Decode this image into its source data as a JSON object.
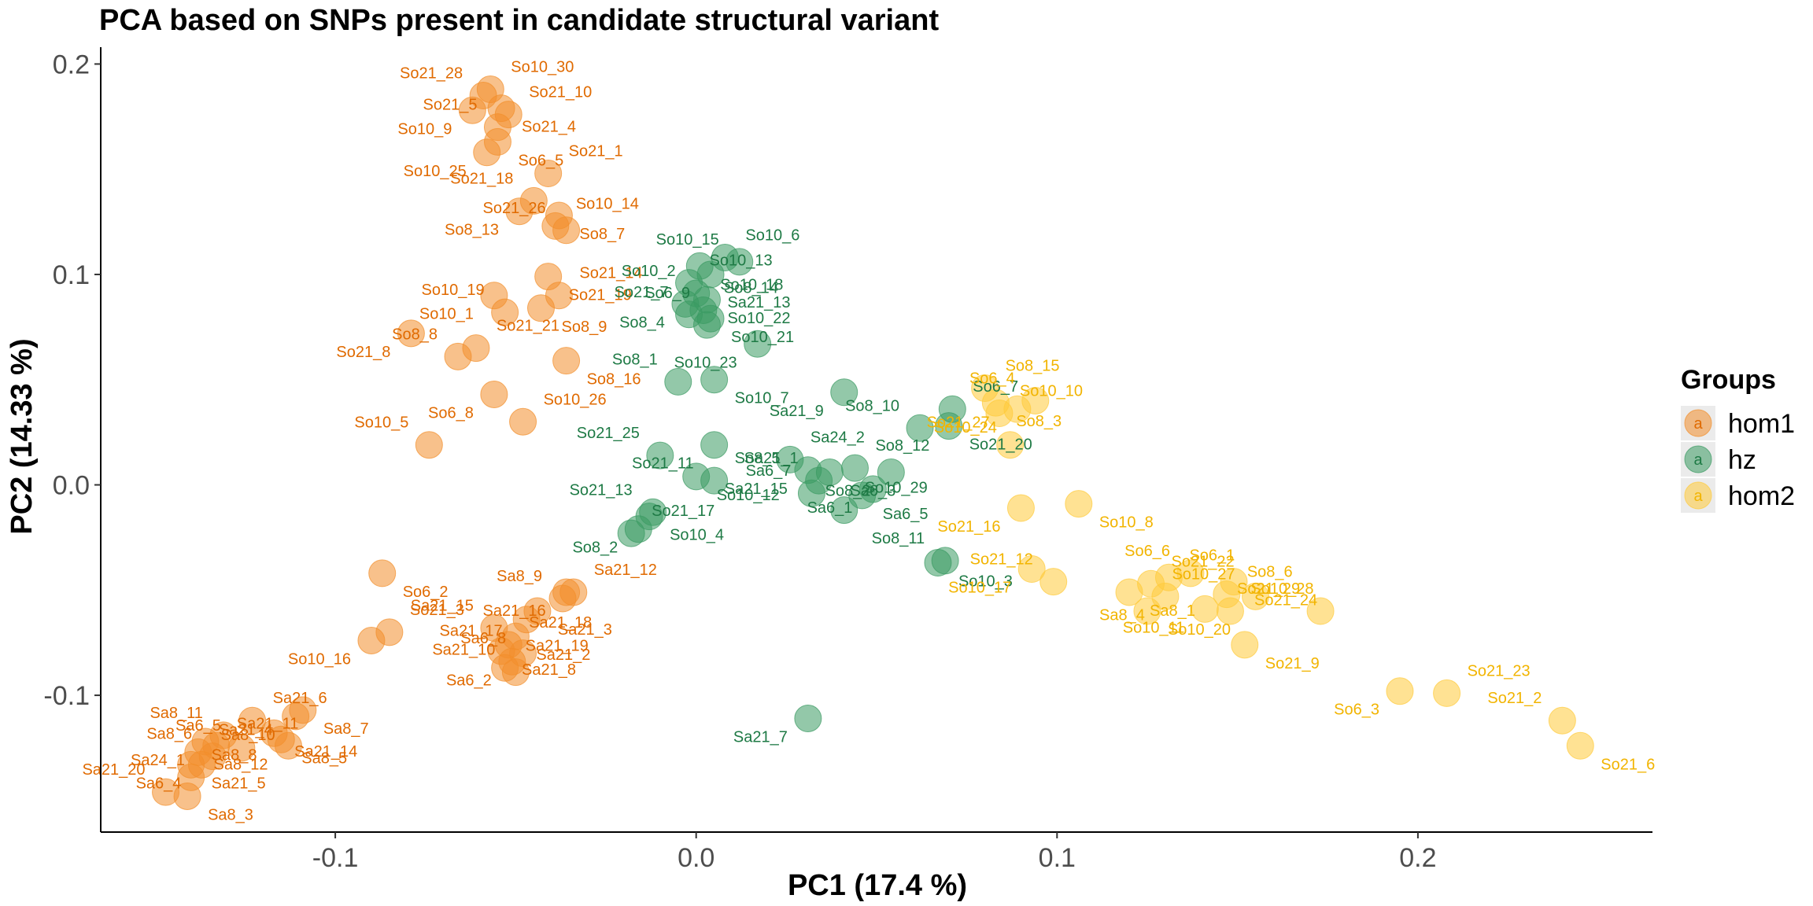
{
  "chart_data": {
    "type": "scatter",
    "title": "PCA based on SNPs present in candidate structural variant",
    "xlabel": "PC1 (17.4 %)",
    "ylabel": "PC2 (14.33 %)",
    "xlim": [
      -0.165,
      0.265
    ],
    "ylim": [
      -0.165,
      0.208
    ],
    "xticks": [
      -0.1,
      0.0,
      0.1,
      0.2
    ],
    "xtick_labels": [
      "-0.1",
      "0.0",
      "0.1",
      "0.2"
    ],
    "yticks": [
      -0.1,
      0.0,
      0.1,
      0.2
    ],
    "ytick_labels": [
      "-0.1",
      "0.0",
      "0.1",
      "0.2"
    ],
    "grid": false,
    "legend": {
      "title": "Groups",
      "position": "right",
      "glyph": "a",
      "entries": [
        {
          "name": "hom1",
          "color": "#F28E2B"
        },
        {
          "name": "hz",
          "color": "#3A9A62"
        },
        {
          "name": "hom2",
          "color": "#FFCA3A"
        }
      ]
    },
    "label_colors": {
      "hom1": "#E06A00",
      "hz": "#1E7A45",
      "hom2": "#F2B400"
    },
    "series": [
      {
        "name": "hom1",
        "points": [
          {
            "label": "So10_30",
            "x": -0.057,
            "y": 0.188
          },
          {
            "label": "So21_28",
            "x": -0.059,
            "y": 0.185
          },
          {
            "label": "So21_4",
            "x": -0.054,
            "y": 0.179
          },
          {
            "label": "So10_9",
            "x": -0.062,
            "y": 0.178
          },
          {
            "label": "So21_10",
            "x": -0.052,
            "y": 0.176
          },
          {
            "label": "So21_5",
            "x": -0.055,
            "y": 0.17
          },
          {
            "label": "So6_5",
            "x": -0.055,
            "y": 0.163
          },
          {
            "label": "So10_25",
            "x": -0.058,
            "y": 0.158
          },
          {
            "label": "So21_1",
            "x": -0.041,
            "y": 0.148
          },
          {
            "label": "So21_18",
            "x": -0.045,
            "y": 0.135
          },
          {
            "label": "So8_7",
            "x": -0.038,
            "y": 0.128
          },
          {
            "label": "So8_13",
            "x": -0.049,
            "y": 0.13
          },
          {
            "label": "So10_14",
            "x": -0.039,
            "y": 0.123
          },
          {
            "label": "So21_26",
            "x": -0.036,
            "y": 0.121
          },
          {
            "label": "So21_19",
            "x": -0.041,
            "y": 0.099
          },
          {
            "label": "So10_1",
            "x": -0.056,
            "y": 0.09
          },
          {
            "label": "So21_14",
            "x": -0.038,
            "y": 0.09
          },
          {
            "label": "So10_19",
            "x": -0.053,
            "y": 0.082
          },
          {
            "label": "So8_9",
            "x": -0.043,
            "y": 0.084
          },
          {
            "label": "So21_8",
            "x": -0.079,
            "y": 0.072
          },
          {
            "label": "So21_21",
            "x": -0.061,
            "y": 0.065
          },
          {
            "label": "So8_8",
            "x": -0.066,
            "y": 0.061
          },
          {
            "label": "So8_16",
            "x": -0.036,
            "y": 0.059
          },
          {
            "label": "So6_8",
            "x": -0.056,
            "y": 0.043
          },
          {
            "label": "So10_26",
            "x": -0.048,
            "y": 0.03
          },
          {
            "label": "So10_5",
            "x": -0.074,
            "y": 0.019
          },
          {
            "label": "So6_2",
            "x": -0.087,
            "y": -0.042
          },
          {
            "label": "Sa21_16",
            "x": -0.036,
            "y": -0.051
          },
          {
            "label": "Sa21_12",
            "x": -0.034,
            "y": -0.051
          },
          {
            "label": "Sa8_9",
            "x": -0.037,
            "y": -0.054
          },
          {
            "label": "Sa21_3",
            "x": -0.044,
            "y": -0.06
          },
          {
            "label": "Sa6_8",
            "x": -0.047,
            "y": -0.064
          },
          {
            "label": "So21_3",
            "x": -0.085,
            "y": -0.07
          },
          {
            "label": "Sa21_15",
            "x": -0.056,
            "y": -0.068
          },
          {
            "label": "Sa21_2",
            "x": -0.05,
            "y": -0.072
          },
          {
            "label": "So10_16",
            "x": -0.09,
            "y": -0.074
          },
          {
            "label": "Sa21_18",
            "x": -0.052,
            "y": -0.076
          },
          {
            "label": "Sa21_17",
            "x": -0.048,
            "y": -0.08
          },
          {
            "label": "Sa21_8",
            "x": -0.054,
            "y": -0.079
          },
          {
            "label": "Sa6_2",
            "x": -0.051,
            "y": -0.084
          },
          {
            "label": "Sa21_19",
            "x": -0.053,
            "y": -0.087
          },
          {
            "label": "Sa21_10",
            "x": -0.05,
            "y": -0.089
          },
          {
            "label": "Sa8_7",
            "x": -0.109,
            "y": -0.107
          },
          {
            "label": "Sa8_10",
            "x": -0.111,
            "y": -0.11
          },
          {
            "label": "Sa21_6",
            "x": -0.123,
            "y": -0.112
          },
          {
            "label": "Sa8_11",
            "x": -0.131,
            "y": -0.119
          },
          {
            "label": "Sa21_14",
            "x": -0.117,
            "y": -0.118
          },
          {
            "label": "Sa24_1",
            "x": -0.136,
            "y": -0.122
          },
          {
            "label": "Sa21_11",
            "x": -0.133,
            "y": -0.124
          },
          {
            "label": "Sa6_5",
            "x": -0.126,
            "y": -0.125
          },
          {
            "label": "Sa8_5",
            "x": -0.115,
            "y": -0.121
          },
          {
            "label": "Sa8_12",
            "x": -0.113,
            "y": -0.124
          },
          {
            "label": "Sa21_4",
            "x": -0.138,
            "y": -0.127
          },
          {
            "label": "Sa8_6",
            "x": -0.134,
            "y": -0.129
          },
          {
            "label": "Sa21_5",
            "x": -0.14,
            "y": -0.133
          },
          {
            "label": "Sa6_4",
            "x": -0.137,
            "y": -0.133
          },
          {
            "label": "Sa8_8",
            "x": -0.14,
            "y": -0.139
          },
          {
            "label": "Sa21_20",
            "x": -0.147,
            "y": -0.146
          },
          {
            "label": "Sa8_3",
            "x": -0.141,
            "y": -0.148
          }
        ]
      },
      {
        "name": "hz",
        "points": [
          {
            "label": "So10_6",
            "x": 0.008,
            "y": 0.108
          },
          {
            "label": "So10_15",
            "x": 0.012,
            "y": 0.106
          },
          {
            "label": "So10_18",
            "x": 0.001,
            "y": 0.104
          },
          {
            "label": "So6_9",
            "x": 0.004,
            "y": 0.1
          },
          {
            "label": "So10_13",
            "x": -0.002,
            "y": 0.096
          },
          {
            "label": "So10_2",
            "x": 0.0,
            "y": 0.091
          },
          {
            "label": "So10_22",
            "x": 0.003,
            "y": 0.088
          },
          {
            "label": "So8_4",
            "x": -0.003,
            "y": 0.086
          },
          {
            "label": "So8_14",
            "x": 0.002,
            "y": 0.083
          },
          {
            "label": "So21_7",
            "x": -0.002,
            "y": 0.081
          },
          {
            "label": "So10_21",
            "x": 0.004,
            "y": 0.079
          },
          {
            "label": "So10_23",
            "x": 0.017,
            "y": 0.067
          },
          {
            "label": "Sa21_13",
            "x": 0.003,
            "y": 0.076
          },
          {
            "label": "So8_1",
            "x": -0.005,
            "y": 0.049
          },
          {
            "label": "So10_7",
            "x": 0.005,
            "y": 0.05
          },
          {
            "label": "Sa21_9",
            "x": 0.041,
            "y": 0.044
          },
          {
            "label": "So6_7",
            "x": 0.071,
            "y": 0.036
          },
          {
            "label": "So8_10",
            "x": 0.062,
            "y": 0.027
          },
          {
            "label": "So21_20",
            "x": 0.07,
            "y": 0.028
          },
          {
            "label": "So21_11",
            "x": 0.005,
            "y": 0.019
          },
          {
            "label": "Sa24_2",
            "x": 0.026,
            "y": 0.012
          },
          {
            "label": "So21_25",
            "x": -0.01,
            "y": 0.014
          },
          {
            "label": "So10_12",
            "x": 0.0,
            "y": 0.004
          },
          {
            "label": "Sa21_15",
            "x": 0.031,
            "y": 0.007
          },
          {
            "label": "So8_12",
            "x": 0.044,
            "y": 0.008
          },
          {
            "label": "Sa21_1",
            "x": 0.034,
            "y": 0.002
          },
          {
            "label": "Sa6_3",
            "x": 0.037,
            "y": 0.006
          },
          {
            "label": "So8_2",
            "x": 0.054,
            "y": 0.006
          },
          {
            "label": "So8_5",
            "x": 0.005,
            "y": 0.002
          },
          {
            "label": "Sa6_7",
            "x": 0.032,
            "y": -0.004
          },
          {
            "label": "Sa6_5",
            "x": 0.046,
            "y": -0.005
          },
          {
            "label": "Sa6_1",
            "x": 0.049,
            "y": -0.002
          },
          {
            "label": "So10_29",
            "x": 0.041,
            "y": -0.012
          },
          {
            "label": "So21_13",
            "x": -0.012,
            "y": -0.013
          },
          {
            "label": "So10_4",
            "x": -0.013,
            "y": -0.015
          },
          {
            "label": "So8_2b",
            "x": -0.016,
            "y": -0.021
          },
          {
            "label": "So21_17",
            "x": -0.018,
            "y": -0.023
          },
          {
            "label": "So8_11",
            "x": 0.069,
            "y": -0.036
          },
          {
            "label": "So10_3",
            "x": 0.067,
            "y": -0.037
          },
          {
            "label": "Sa21_7",
            "x": 0.031,
            "y": -0.111
          }
        ]
      },
      {
        "name": "hom2",
        "points": [
          {
            "label": "So8_15",
            "x": 0.08,
            "y": 0.046
          },
          {
            "label": "So6_4",
            "x": 0.094,
            "y": 0.04
          },
          {
            "label": "So8_3",
            "x": 0.083,
            "y": 0.039
          },
          {
            "label": "So10_24",
            "x": 0.089,
            "y": 0.036
          },
          {
            "label": "So10_10",
            "x": 0.084,
            "y": 0.034
          },
          {
            "label": "So21_27",
            "x": 0.087,
            "y": 0.019
          },
          {
            "label": "So10_8",
            "x": 0.106,
            "y": -0.009
          },
          {
            "label": "So21_16",
            "x": 0.09,
            "y": -0.011
          },
          {
            "label": "So6_1",
            "x": 0.131,
            "y": -0.044
          },
          {
            "label": "So6_6",
            "x": 0.137,
            "y": -0.042
          },
          {
            "label": "So21_24",
            "x": 0.149,
            "y": -0.046
          },
          {
            "label": "So10_17",
            "x": 0.093,
            "y": -0.04
          },
          {
            "label": "So21_22",
            "x": 0.126,
            "y": -0.047
          },
          {
            "label": "So21_12",
            "x": 0.099,
            "y": -0.046
          },
          {
            "label": "Sa8_1",
            "x": 0.12,
            "y": -0.051
          },
          {
            "label": "Sa8_4",
            "x": 0.13,
            "y": -0.053
          },
          {
            "label": "So8_6",
            "x": 0.147,
            "y": -0.052
          },
          {
            "label": "So10_27",
            "x": 0.155,
            "y": -0.053
          },
          {
            "label": "So10_20",
            "x": 0.125,
            "y": -0.06
          },
          {
            "label": "So10_11",
            "x": 0.141,
            "y": -0.059
          },
          {
            "label": "So10_28",
            "x": 0.148,
            "y": -0.06
          },
          {
            "label": "So21_29",
            "x": 0.173,
            "y": -0.06
          },
          {
            "label": "So21_9",
            "x": 0.152,
            "y": -0.076
          },
          {
            "label": "So6_3",
            "x": 0.195,
            "y": -0.098
          },
          {
            "label": "So21_23",
            "x": 0.208,
            "y": -0.099
          },
          {
            "label": "So21_2",
            "x": 0.24,
            "y": -0.112
          },
          {
            "label": "So21_6",
            "x": 0.245,
            "y": -0.124
          }
        ]
      }
    ],
    "label_text_fixes": {
      "So8_2b": "So8_2"
    }
  }
}
